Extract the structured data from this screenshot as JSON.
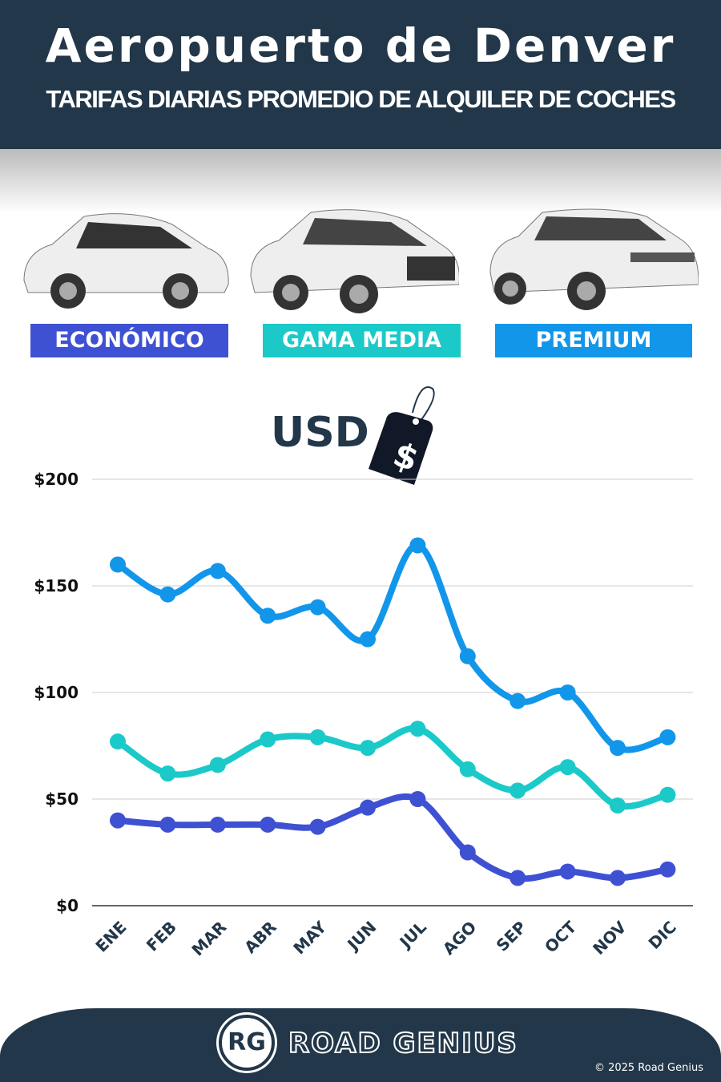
{
  "header": {
    "title": "Aeropuerto de Denver",
    "subtitle": "TARIFAS DIARIAS PROMEDIO DE ALQUILER DE COCHES"
  },
  "categories_legend": [
    {
      "label": "ECONÓMICO",
      "color": "#3f51d3"
    },
    {
      "label": "GAMA MEDIA",
      "color": "#1cc9c9"
    },
    {
      "label": "PREMIUM",
      "color": "#1296ea"
    }
  ],
  "currency_label": "USD",
  "price_tag_icon": "price-tag-dollar",
  "chart_data": {
    "type": "line",
    "title": "",
    "categories": [
      "ENE",
      "FEB",
      "MAR",
      "ABR",
      "MAY",
      "JUN",
      "JUL",
      "AGO",
      "SEP",
      "OCT",
      "NOV",
      "DIC"
    ],
    "ylim": [
      0,
      200
    ],
    "yticks": [
      "$0",
      "$50",
      "$100",
      "$150",
      "$200"
    ],
    "grid": true,
    "series": [
      {
        "name": "PREMIUM",
        "color": "#1296ea",
        "values": [
          160,
          146,
          157,
          136,
          140,
          125,
          169,
          117,
          96,
          100,
          74,
          79
        ]
      },
      {
        "name": "GAMA MEDIA",
        "color": "#1cc9c9",
        "values": [
          77,
          62,
          66,
          78,
          79,
          74,
          83,
          64,
          54,
          65,
          47,
          52
        ]
      },
      {
        "name": "ECONÓMICO",
        "color": "#3f51d3",
        "values": [
          40,
          38,
          38,
          38,
          37,
          46,
          50,
          25,
          13,
          16,
          13,
          17
        ]
      }
    ]
  },
  "footer": {
    "logo": "RG",
    "brand": "ROAD GENIUS",
    "copyright": "© 2025 Road Genius"
  }
}
